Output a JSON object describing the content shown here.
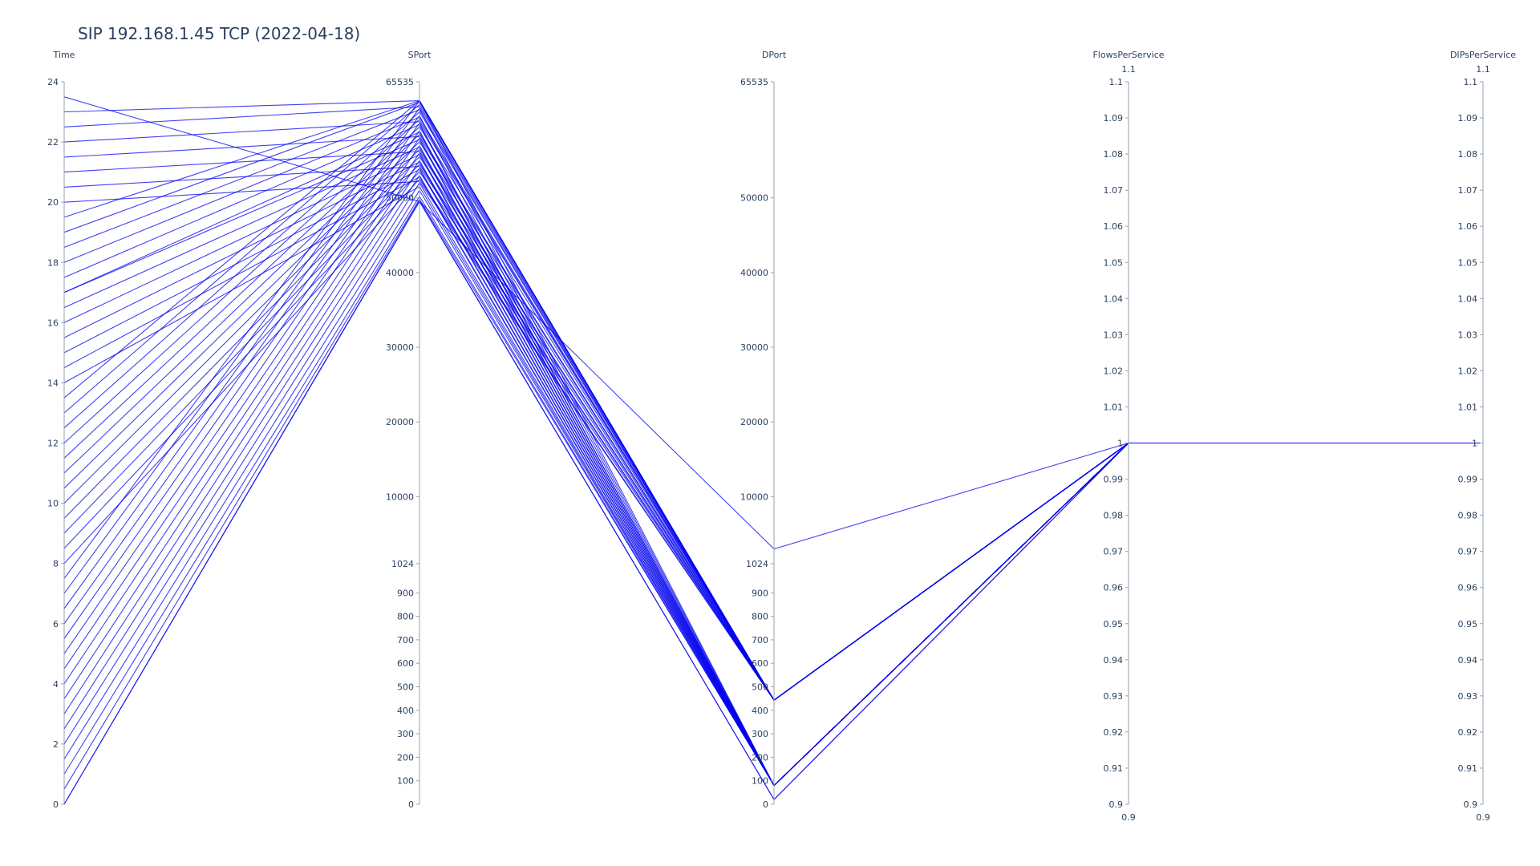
{
  "chart_data": {
    "type": "parallel_coordinates",
    "title": "SIP 192.168.1.45 TCP (2022-04-18)",
    "line_color": "#0000ee",
    "axis_color": "#9aa0aa",
    "text_color": "#2a3f5f",
    "dimensions": [
      {
        "name": "Time",
        "range": [
          0,
          24
        ],
        "ticks": [
          {
            "value": 0,
            "label": "0"
          },
          {
            "value": 2,
            "label": "2"
          },
          {
            "value": 4,
            "label": "4"
          },
          {
            "value": 6,
            "label": "6"
          },
          {
            "value": 8,
            "label": "8"
          },
          {
            "value": 10,
            "label": "10"
          },
          {
            "value": 12,
            "label": "12"
          },
          {
            "value": 14,
            "label": "14"
          },
          {
            "value": 16,
            "label": "16"
          },
          {
            "value": 18,
            "label": "18"
          },
          {
            "value": 20,
            "label": "20"
          },
          {
            "value": 22,
            "label": "22"
          },
          {
            "value": 24,
            "label": "24"
          }
        ]
      },
      {
        "name": "SPort",
        "scale": "piecewise",
        "breakpoints": [
          [
            0,
            0
          ],
          [
            1024,
            0.333
          ],
          [
            65535,
            1
          ]
        ],
        "ticks": [
          {
            "value": 0,
            "label": "0"
          },
          {
            "value": 100,
            "label": "100"
          },
          {
            "value": 200,
            "label": "200"
          },
          {
            "value": 300,
            "label": "300"
          },
          {
            "value": 400,
            "label": "400"
          },
          {
            "value": 500,
            "label": "500"
          },
          {
            "value": 600,
            "label": "600"
          },
          {
            "value": 700,
            "label": "700"
          },
          {
            "value": 800,
            "label": "800"
          },
          {
            "value": 900,
            "label": "900"
          },
          {
            "value": 1024,
            "label": "1024"
          },
          {
            "value": 10000,
            "label": "10000"
          },
          {
            "value": 20000,
            "label": "20000"
          },
          {
            "value": 30000,
            "label": "30000"
          },
          {
            "value": 40000,
            "label": "40000"
          },
          {
            "value": 50000,
            "label": "50000"
          },
          {
            "value": 65535,
            "label": "65535"
          }
        ]
      },
      {
        "name": "DPort",
        "scale": "piecewise",
        "breakpoints": [
          [
            0,
            0
          ],
          [
            1024,
            0.333
          ],
          [
            65535,
            1
          ]
        ],
        "ticks": [
          {
            "value": 0,
            "label": "0"
          },
          {
            "value": 100,
            "label": "100"
          },
          {
            "value": 200,
            "label": "200"
          },
          {
            "value": 300,
            "label": "300"
          },
          {
            "value": 400,
            "label": "400"
          },
          {
            "value": 500,
            "label": "500"
          },
          {
            "value": 600,
            "label": "600"
          },
          {
            "value": 700,
            "label": "700"
          },
          {
            "value": 800,
            "label": "800"
          },
          {
            "value": 900,
            "label": "900"
          },
          {
            "value": 1024,
            "label": "1024"
          },
          {
            "value": 10000,
            "label": "10000"
          },
          {
            "value": 20000,
            "label": "20000"
          },
          {
            "value": 30000,
            "label": "30000"
          },
          {
            "value": 40000,
            "label": "40000"
          },
          {
            "value": 50000,
            "label": "50000"
          },
          {
            "value": 65535,
            "label": "65535"
          }
        ]
      },
      {
        "name": "FlowsPerService",
        "range": [
          0.9,
          1.1
        ],
        "range_labels": [
          "0.9",
          "1.1"
        ],
        "ticks": [
          {
            "value": 0.9,
            "label": "0.9"
          },
          {
            "value": 0.91,
            "label": "0.91"
          },
          {
            "value": 0.92,
            "label": "0.92"
          },
          {
            "value": 0.93,
            "label": "0.93"
          },
          {
            "value": 0.94,
            "label": "0.94"
          },
          {
            "value": 0.95,
            "label": "0.95"
          },
          {
            "value": 0.96,
            "label": "0.96"
          },
          {
            "value": 0.97,
            "label": "0.97"
          },
          {
            "value": 0.98,
            "label": "0.98"
          },
          {
            "value": 0.99,
            "label": "0.99"
          },
          {
            "value": 1.0,
            "label": "1"
          },
          {
            "value": 1.01,
            "label": "1.01"
          },
          {
            "value": 1.02,
            "label": "1.02"
          },
          {
            "value": 1.03,
            "label": "1.03"
          },
          {
            "value": 1.04,
            "label": "1.04"
          },
          {
            "value": 1.05,
            "label": "1.05"
          },
          {
            "value": 1.06,
            "label": "1.06"
          },
          {
            "value": 1.07,
            "label": "1.07"
          },
          {
            "value": 1.08,
            "label": "1.08"
          },
          {
            "value": 1.09,
            "label": "1.09"
          },
          {
            "value": 1.1,
            "label": "1.1"
          }
        ]
      },
      {
        "name": "DIPsPerService",
        "range": [
          0.9,
          1.1
        ],
        "range_labels": [
          "0.9",
          "1.1"
        ],
        "ticks": [
          {
            "value": 0.9,
            "label": "0.9"
          },
          {
            "value": 0.91,
            "label": "0.91"
          },
          {
            "value": 0.92,
            "label": "0.92"
          },
          {
            "value": 0.93,
            "label": "0.93"
          },
          {
            "value": 0.94,
            "label": "0.94"
          },
          {
            "value": 0.95,
            "label": "0.95"
          },
          {
            "value": 0.96,
            "label": "0.96"
          },
          {
            "value": 0.97,
            "label": "0.97"
          },
          {
            "value": 0.98,
            "label": "0.98"
          },
          {
            "value": 0.99,
            "label": "0.99"
          },
          {
            "value": 1.0,
            "label": "1"
          },
          {
            "value": 1.01,
            "label": "1.01"
          },
          {
            "value": 1.02,
            "label": "1.02"
          },
          {
            "value": 1.03,
            "label": "1.03"
          },
          {
            "value": 1.04,
            "label": "1.04"
          },
          {
            "value": 1.05,
            "label": "1.05"
          },
          {
            "value": 1.06,
            "label": "1.06"
          },
          {
            "value": 1.07,
            "label": "1.07"
          },
          {
            "value": 1.08,
            "label": "1.08"
          },
          {
            "value": 1.09,
            "label": "1.09"
          },
          {
            "value": 1.1,
            "label": "1.1"
          }
        ]
      }
    ],
    "records": [
      [
        0.0,
        49500,
        20,
        1,
        1
      ],
      [
        0.0,
        49600,
        20,
        1,
        1
      ],
      [
        0.5,
        49800,
        80,
        1,
        1
      ],
      [
        1.0,
        50200,
        80,
        1,
        1
      ],
      [
        1.5,
        51000,
        80,
        1,
        1
      ],
      [
        2.0,
        52000,
        80,
        1,
        1
      ],
      [
        2.5,
        53000,
        80,
        1,
        1
      ],
      [
        3.0,
        54000,
        80,
        1,
        1
      ],
      [
        3.5,
        55000,
        80,
        1,
        1
      ],
      [
        4.0,
        56000,
        80,
        1,
        1
      ],
      [
        4.5,
        57000,
        80,
        1,
        1
      ],
      [
        5.0,
        58000,
        80,
        1,
        1
      ],
      [
        5.5,
        59000,
        80,
        1,
        1
      ],
      [
        6.0,
        60000,
        80,
        1,
        1
      ],
      [
        6.5,
        61000,
        80,
        1,
        1
      ],
      [
        7.0,
        62000,
        80,
        1,
        1
      ],
      [
        7.5,
        63000,
        80,
        1,
        1
      ],
      [
        8.0,
        52500,
        443,
        1,
        1
      ],
      [
        8.5,
        53500,
        443,
        1,
        1
      ],
      [
        9.0,
        54500,
        443,
        1,
        1
      ],
      [
        9.5,
        55500,
        443,
        1,
        1
      ],
      [
        10.0,
        56500,
        443,
        1,
        1
      ],
      [
        10.5,
        57500,
        443,
        1,
        1
      ],
      [
        11.0,
        58500,
        443,
        1,
        1
      ],
      [
        11.5,
        59500,
        443,
        1,
        1
      ],
      [
        12.0,
        60500,
        443,
        1,
        1
      ],
      [
        12.5,
        61500,
        443,
        1,
        1
      ],
      [
        13.0,
        62500,
        443,
        1,
        1
      ],
      [
        13.5,
        63000,
        443,
        1,
        1
      ],
      [
        14.0,
        51500,
        80,
        1,
        1
      ],
      [
        14.5,
        52800,
        80,
        1,
        1
      ],
      [
        15.0,
        53800,
        80,
        1,
        1
      ],
      [
        15.5,
        54800,
        80,
        1,
        1
      ],
      [
        16.0,
        55800,
        80,
        1,
        1
      ],
      [
        16.5,
        56800,
        80,
        1,
        1
      ],
      [
        17.0,
        57800,
        80,
        1,
        1
      ],
      [
        17.0,
        58800,
        80,
        1,
        1
      ],
      [
        17.5,
        59800,
        80,
        1,
        1
      ],
      [
        18.0,
        60800,
        443,
        1,
        1
      ],
      [
        18.5,
        61800,
        443,
        1,
        1
      ],
      [
        19.0,
        62800,
        443,
        1,
        1
      ],
      [
        19.5,
        63000,
        443,
        1,
        1
      ],
      [
        20.0,
        52200,
        443,
        1,
        1
      ],
      [
        20.5,
        54200,
        443,
        1,
        1
      ],
      [
        21.0,
        56200,
        443,
        1,
        1
      ],
      [
        21.5,
        58200,
        443,
        1,
        1
      ],
      [
        22.0,
        60200,
        443,
        1,
        1
      ],
      [
        22.5,
        62200,
        443,
        1,
        1
      ],
      [
        23.0,
        63000,
        443,
        1,
        1
      ],
      [
        23.5,
        49500,
        3000,
        1,
        1
      ]
    ]
  }
}
